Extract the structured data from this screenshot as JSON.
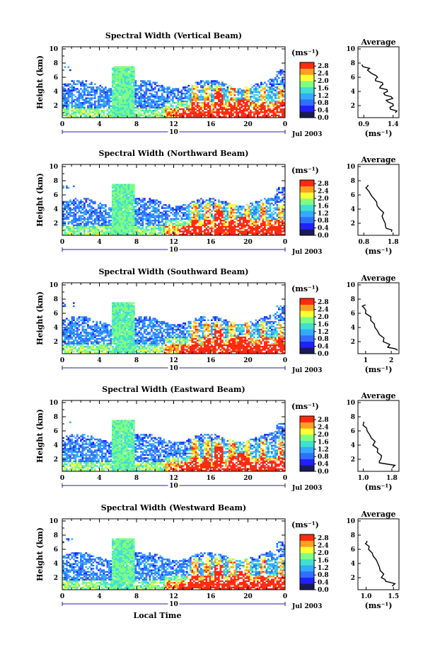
{
  "colors": {
    "background": "#ffffff",
    "frame": "#000000",
    "scale": [
      "#1a1a5a",
      "#2020ff",
      "#2f6fff",
      "#33aaff",
      "#40e0d0",
      "#7fff80",
      "#ffff33",
      "#ff9f20",
      "#ff2a10"
    ]
  },
  "chart_data": [
    {
      "type": "heatmap",
      "title": "Spectral Width (Vertical Beam)",
      "ylabel": "Height (km)",
      "xlabel": "",
      "x_ticks": [
        "0",
        "4",
        "8",
        "12",
        "16",
        "20",
        "0"
      ],
      "y_ticks": [
        "2",
        "4",
        "6",
        "8",
        "10"
      ],
      "xlim": [
        0,
        24
      ],
      "ylim": [
        0.3,
        10.3
      ],
      "date_marker": "10",
      "date_label": "Jul 2003",
      "colorbar": {
        "unit": "(ms⁻¹)",
        "ticks": [
          "0.0",
          "0.4",
          "0.8",
          "1.2",
          "1.6",
          "2.0",
          "2.4",
          "2.8"
        ],
        "range": [
          0,
          3.0
        ]
      },
      "average": {
        "title": "Average",
        "xlabel": "(ms⁻¹)",
        "x_ticks": [
          "0.9",
          "1.4"
        ],
        "xlim": [
          0.8,
          1.5
        ],
        "y_ticks": [
          "2",
          "4",
          "6",
          "8",
          "10"
        ],
        "profile": [
          [
            1.45,
            1.0
          ],
          [
            1.35,
            1.5
          ],
          [
            1.4,
            2.0
          ],
          [
            1.3,
            2.5
          ],
          [
            1.38,
            3.0
          ],
          [
            1.25,
            3.5
          ],
          [
            1.3,
            4.0
          ],
          [
            1.18,
            4.5
          ],
          [
            1.22,
            5.0
          ],
          [
            1.1,
            5.5
          ],
          [
            1.12,
            6.0
          ],
          [
            1.02,
            6.5
          ],
          [
            0.98,
            7.0
          ],
          [
            0.88,
            7.5
          ],
          [
            0.85,
            7.8
          ]
        ]
      }
    },
    {
      "type": "heatmap",
      "title": "Spectral Width (Northward Beam)",
      "ylabel": "Height (km)",
      "xlabel": "",
      "x_ticks": [
        "0",
        "4",
        "8",
        "12",
        "16",
        "20",
        "0"
      ],
      "y_ticks": [
        "2",
        "4",
        "6",
        "8",
        "10"
      ],
      "xlim": [
        0,
        24
      ],
      "ylim": [
        0.3,
        10.3
      ],
      "date_marker": "10",
      "date_label": "Jul 2003",
      "colorbar": {
        "unit": "(ms⁻¹)",
        "ticks": [
          "0.0",
          "0.4",
          "0.8",
          "1.2",
          "1.6",
          "2.0",
          "2.4",
          "2.8"
        ],
        "range": [
          0,
          3.0
        ]
      },
      "average": {
        "title": "Average",
        "xlabel": "(ms⁻¹)",
        "x_ticks": [
          "0.8",
          "1.8"
        ],
        "xlim": [
          0.6,
          2.0
        ],
        "y_ticks": [
          "2",
          "4",
          "6",
          "8",
          "10"
        ],
        "profile": [
          [
            1.75,
            0.8
          ],
          [
            1.55,
            1.3
          ],
          [
            1.5,
            2.0
          ],
          [
            1.45,
            3.0
          ],
          [
            1.3,
            4.0
          ],
          [
            1.2,
            5.0
          ],
          [
            1.05,
            5.8
          ],
          [
            0.95,
            6.5
          ],
          [
            0.9,
            7.0
          ],
          [
            0.95,
            7.4
          ]
        ]
      }
    },
    {
      "type": "heatmap",
      "title": "Spectral Width (Southward Beam)",
      "ylabel": "Height (km)",
      "xlabel": "",
      "x_ticks": [
        "0",
        "4",
        "8",
        "12",
        "16",
        "20",
        "0"
      ],
      "y_ticks": [
        "2",
        "4",
        "6",
        "8",
        "10"
      ],
      "xlim": [
        0,
        24
      ],
      "ylim": [
        0.3,
        10.3
      ],
      "date_marker": "10",
      "date_label": "Jul 2003",
      "colorbar": {
        "unit": "(ms⁻¹)",
        "ticks": [
          "0.0",
          "0.4",
          "0.8",
          "1.2",
          "1.6",
          "2.0",
          "2.4",
          "2.8"
        ],
        "range": [
          0,
          3.0
        ]
      },
      "average": {
        "title": "Average",
        "xlabel": "(ms⁻¹)",
        "x_ticks": [
          "1",
          "2"
        ],
        "xlim": [
          0.7,
          2.3
        ],
        "y_ticks": [
          "2",
          "4",
          "6",
          "8",
          "10"
        ],
        "profile": [
          [
            2.2,
            0.8
          ],
          [
            1.9,
            1.2
          ],
          [
            1.7,
            2.0
          ],
          [
            1.5,
            3.0
          ],
          [
            1.35,
            4.0
          ],
          [
            1.2,
            5.0
          ],
          [
            1.0,
            6.0
          ],
          [
            0.9,
            6.8
          ],
          [
            0.95,
            7.2
          ]
        ]
      }
    },
    {
      "type": "heatmap",
      "title": "Spectral Width (Eastward Beam)",
      "ylabel": "Height (km)",
      "xlabel": "",
      "x_ticks": [
        "0",
        "4",
        "8",
        "12",
        "16",
        "20",
        "0"
      ],
      "y_ticks": [
        "2",
        "4",
        "6",
        "8",
        "10"
      ],
      "xlim": [
        0,
        24
      ],
      "ylim": [
        0.3,
        10.3
      ],
      "date_marker": "10",
      "date_label": "Jul 2003",
      "colorbar": {
        "unit": "(ms⁻¹)",
        "ticks": [
          "0.0",
          "0.4",
          "0.8",
          "1.2",
          "1.6",
          "2.0",
          "2.4",
          "2.8"
        ],
        "range": [
          0,
          3.0
        ]
      },
      "average": {
        "title": "Average",
        "xlabel": "(ms⁻¹)",
        "x_ticks": [
          "1.0",
          "1.8"
        ],
        "xlim": [
          0.85,
          2.0
        ],
        "y_ticks": [
          "2",
          "4",
          "6",
          "8",
          "10"
        ],
        "profile": [
          [
            1.85,
            0.8
          ],
          [
            1.45,
            1.5
          ],
          [
            1.5,
            2.0
          ],
          [
            1.4,
            3.0
          ],
          [
            1.3,
            4.0
          ],
          [
            1.2,
            5.0
          ],
          [
            1.1,
            6.0
          ],
          [
            1.0,
            6.8
          ],
          [
            1.05,
            7.3
          ]
        ]
      }
    },
    {
      "type": "heatmap",
      "title": "Spectral Width (Westward Beam)",
      "ylabel": "Height (km)",
      "xlabel": "Local Time",
      "x_ticks": [
        "0",
        "4",
        "8",
        "12",
        "16",
        "20",
        "0"
      ],
      "y_ticks": [
        "2",
        "4",
        "6",
        "8",
        "10"
      ],
      "xlim": [
        0,
        24
      ],
      "ylim": [
        0.3,
        10.3
      ],
      "date_marker": "10",
      "date_label": "Jul 2003",
      "colorbar": {
        "unit": "(ms⁻¹)",
        "ticks": [
          "0.0",
          "0.4",
          "0.8",
          "1.2",
          "1.6",
          "2.0",
          "2.4",
          "2.8"
        ],
        "range": [
          0,
          3.0
        ]
      },
      "average": {
        "title": "Average",
        "xlabel": "(ms⁻¹)",
        "x_ticks": [
          "1.0",
          "1.5"
        ],
        "xlim": [
          0.85,
          1.6
        ],
        "y_ticks": [
          "2",
          "4",
          "6",
          "8",
          "10"
        ],
        "profile": [
          [
            1.5,
            0.8
          ],
          [
            1.35,
            1.5
          ],
          [
            1.3,
            2.0
          ],
          [
            1.25,
            3.0
          ],
          [
            1.2,
            4.0
          ],
          [
            1.12,
            5.0
          ],
          [
            1.05,
            6.0
          ],
          [
            1.0,
            6.8
          ],
          [
            1.02,
            7.2
          ]
        ]
      }
    }
  ]
}
